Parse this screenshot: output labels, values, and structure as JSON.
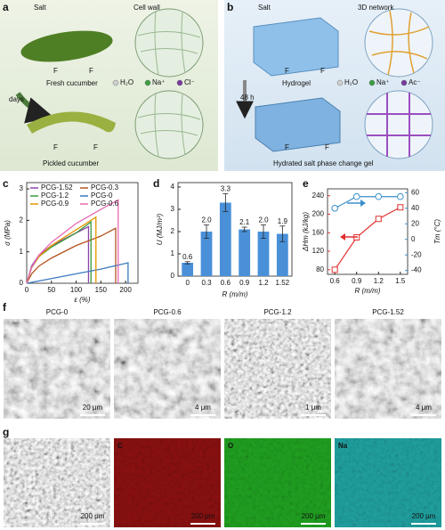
{
  "illustrations": {
    "a": {
      "panel": "a",
      "salt": "Salt",
      "cell_wall": "Cell wall",
      "time": "days",
      "fresh": "Fresh cucumber",
      "pickled": "Pickled cucumber",
      "force": "F",
      "legend": [
        "H₂O",
        "Na⁺",
        "Cl⁻"
      ]
    },
    "b": {
      "panel": "b",
      "salt": "Salt",
      "network": "3D network",
      "time": "48 h",
      "hydrogel": "Hydrogel",
      "gel": "Hydrated salt phase change gel",
      "force": "F",
      "legend": [
        "H₂O",
        "Na⁺",
        "Ac⁻"
      ]
    }
  },
  "chart_data": [
    {
      "type": "line",
      "panel": "c",
      "x_label": "ε (%)",
      "y_label": "σ (MPa)",
      "xlim": [
        0,
        225
      ],
      "ylim": [
        0,
        3.2
      ],
      "xticks": [
        0,
        50,
        100,
        150,
        200
      ],
      "yticks": [
        0,
        1,
        2,
        3
      ],
      "legend": "upper left",
      "series": [
        {
          "name": "PCG-1.52",
          "color": "#8e44ad",
          "x": [
            0,
            10,
            25,
            50,
            100,
            125,
            125
          ],
          "values": [
            0,
            0.55,
            0.9,
            1.2,
            1.6,
            1.8,
            0
          ]
        },
        {
          "name": "PCG-0.3",
          "color": "#b5521e",
          "x": [
            0,
            10,
            25,
            50,
            100,
            150,
            180,
            180
          ],
          "values": [
            0,
            0.3,
            0.55,
            0.8,
            1.2,
            1.5,
            1.75,
            0
          ]
        },
        {
          "name": "PCG-1.2",
          "color": "#3a9a3a",
          "x": [
            0,
            10,
            25,
            50,
            100,
            130,
            130
          ],
          "values": [
            0,
            0.5,
            0.85,
            1.15,
            1.6,
            1.95,
            0
          ]
        },
        {
          "name": "PCG-0",
          "color": "#3a7ac0",
          "x": [
            0,
            50,
            100,
            150,
            205,
            205
          ],
          "values": [
            0,
            0.15,
            0.3,
            0.45,
            0.65,
            0
          ]
        },
        {
          "name": "PCG-0.9",
          "color": "#e69500",
          "x": [
            0,
            10,
            25,
            50,
            100,
            140,
            140
          ],
          "values": [
            0,
            0.5,
            0.85,
            1.2,
            1.7,
            2.1,
            0
          ]
        },
        {
          "name": "PCG-0.6",
          "color": "#e86ab5",
          "x": [
            0,
            10,
            25,
            50,
            100,
            150,
            185,
            185
          ],
          "values": [
            0,
            0.5,
            0.9,
            1.3,
            1.9,
            2.35,
            2.65,
            0
          ]
        }
      ]
    },
    {
      "type": "bar",
      "panel": "d",
      "x_label": "R (m/m)",
      "y_label": "U (MJ/m³)",
      "color": "#4a90d9",
      "categories": [
        "0",
        "0.3",
        "0.6",
        "0.9",
        "1.2",
        "1.52"
      ],
      "values": [
        0.6,
        2.0,
        3.3,
        2.1,
        2.0,
        1.9
      ],
      "value_labels": [
        "0.6",
        "2.0",
        "3.3",
        "2.1",
        "2.0",
        "1.9"
      ],
      "errors": [
        0.05,
        0.3,
        0.4,
        0.1,
        0.3,
        0.35
      ],
      "ylim": [
        0,
        4.2
      ],
      "yticks": [
        0,
        1,
        2,
        3,
        4
      ]
    },
    {
      "type": "line",
      "panel": "e",
      "x_label": "R (m/m)",
      "y_label": "ΔHm (kJ/kg)",
      "y2_label": "Tm (°C)",
      "x": [
        0.6,
        0.9,
        1.2,
        1.5
      ],
      "xlim": [
        0.5,
        1.6
      ],
      "xticks": [
        0.6,
        0.9,
        1.2,
        1.5
      ],
      "ylim": [
        70,
        255
      ],
      "yticks": [
        80,
        120,
        160,
        200,
        240
      ],
      "y2lim": [
        -45,
        65
      ],
      "y2ticks": [
        -40,
        -20,
        0,
        20,
        40,
        60
      ],
      "series": [
        {
          "color": "#e03030",
          "marker": "square",
          "values": [
            80,
            150,
            190,
            215
          ]
        },
        {
          "color": "#3a8fc8",
          "marker": "circle",
          "axis": "y2",
          "values": [
            40,
            55,
            55,
            55
          ]
        }
      ]
    }
  ],
  "micrographs": {
    "f": {
      "panel": "f",
      "images": [
        {
          "label": "PCG-0",
          "scale_bar": "20 μm"
        },
        {
          "label": "PCG-0.6",
          "scale_bar": "4 μm"
        },
        {
          "label": "PCG-1.2",
          "scale_bar": "1 μm"
        },
        {
          "label": "PCG-1.52",
          "scale_bar": "4 μm"
        }
      ]
    },
    "g": {
      "panel": "g",
      "images": [
        {
          "scale_bar": "200 μm"
        },
        {
          "label": "C",
          "scale_bar": "200 μm"
        },
        {
          "label": "O",
          "scale_bar": "200 μm"
        },
        {
          "label": "Na",
          "scale_bar": "200 μm"
        }
      ]
    }
  }
}
